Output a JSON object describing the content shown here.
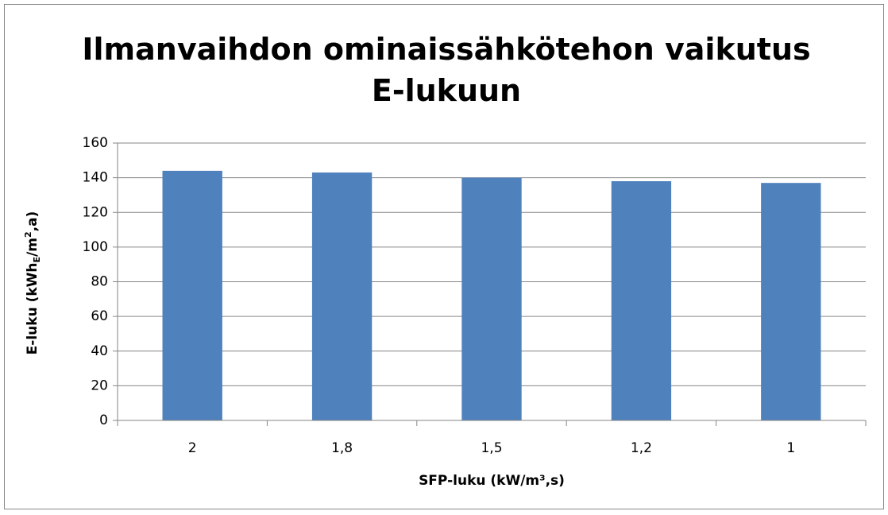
{
  "chart_data": {
    "type": "bar",
    "title": [
      "Ilmanvaihdon ominaissähkötehon vaikutus",
      "E-lukuun"
    ],
    "y_label": [
      "E-luku (kWh",
      "E",
      "/m",
      "2",
      ",a)"
    ],
    "x_label": "SFP-luku (kW/m³,s)",
    "categories": [
      "2",
      "1,8",
      "1,5",
      "1,2",
      "1"
    ],
    "values": [
      144,
      143,
      140,
      138,
      137
    ],
    "color": "#4f81bd",
    "ylim": [
      0,
      160
    ],
    "yticks": [
      0,
      20,
      40,
      60,
      80,
      100,
      120,
      140,
      160
    ],
    "grid": true
  }
}
